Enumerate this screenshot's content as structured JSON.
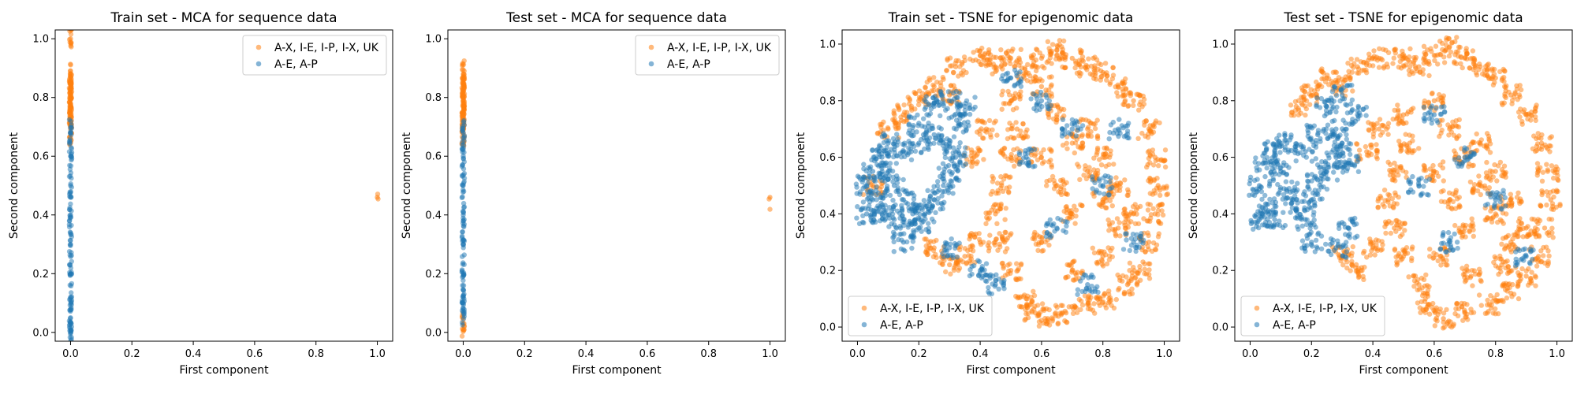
{
  "colors": {
    "orange": "#ff7f0e",
    "blue": "#1f77b4"
  },
  "chart_data": [
    {
      "type": "scatter",
      "title": "Train set - MCA for sequence data",
      "xlabel": "First component",
      "ylabel": "Second component",
      "xlim": [
        -0.05,
        1.05
      ],
      "ylim": [
        -0.03,
        1.03
      ],
      "xticks": [
        "0.0",
        "0.2",
        "0.4",
        "0.6",
        "0.8",
        "1.0"
      ],
      "yticks": [
        "0.0",
        "0.2",
        "0.4",
        "0.6",
        "0.8",
        "1.0"
      ],
      "legend": {
        "placement": "upper-right",
        "entries": [
          "A-X, I-E, I-P, I-X, UK",
          "A-E, A-P"
        ]
      },
      "series": [
        {
          "name": "A-X, I-E, I-P, I-X, UK",
          "color": "#ff7f0e",
          "points": [
            [
              0.0,
              1.0
            ],
            [
              0.0,
              0.88
            ],
            [
              0.0,
              0.85
            ],
            [
              0.0,
              0.82
            ],
            [
              0.0,
              0.8
            ],
            [
              0.0,
              0.78
            ],
            [
              0.0,
              0.75
            ],
            [
              0.0,
              0.72
            ],
            [
              0.0,
              0.7
            ],
            [
              0.0,
              0.68
            ],
            [
              1.0,
              0.46
            ]
          ]
        },
        {
          "name": "A-E, A-P",
          "color": "#1f77b4",
          "points": [
            [
              0.0,
              0.68
            ],
            [
              0.0,
              0.6
            ],
            [
              0.0,
              0.5
            ],
            [
              0.0,
              0.4
            ],
            [
              0.0,
              0.3
            ],
            [
              0.0,
              0.2
            ],
            [
              0.0,
              0.12
            ],
            [
              0.0,
              0.05
            ],
            [
              0.0,
              0.0
            ]
          ]
        }
      ]
    },
    {
      "type": "scatter",
      "title": "Test set - MCA for sequence data",
      "xlabel": "First component",
      "ylabel": "Second component",
      "xlim": [
        -0.05,
        1.05
      ],
      "ylim": [
        -0.03,
        1.03
      ],
      "xticks": [
        "0.0",
        "0.2",
        "0.4",
        "0.6",
        "0.8",
        "1.0"
      ],
      "yticks": [
        "0.0",
        "0.2",
        "0.4",
        "0.6",
        "0.8",
        "1.0"
      ],
      "legend": {
        "placement": "upper-right",
        "entries": [
          "A-X, I-E, I-P, I-X, UK",
          "A-E, A-P"
        ]
      },
      "series": [
        {
          "name": "A-X, I-E, I-P, I-X, UK",
          "color": "#ff7f0e",
          "points": [
            [
              0.0,
              0.88
            ],
            [
              0.0,
              0.85
            ],
            [
              0.0,
              0.82
            ],
            [
              0.0,
              0.8
            ],
            [
              0.0,
              0.78
            ],
            [
              0.0,
              0.75
            ],
            [
              0.0,
              0.72
            ],
            [
              0.0,
              0.7
            ],
            [
              0.0,
              0.68
            ],
            [
              0.0,
              0.03
            ],
            [
              1.0,
              0.46
            ]
          ]
        },
        {
          "name": "A-E, A-P",
          "color": "#1f77b4",
          "points": [
            [
              0.0,
              0.68
            ],
            [
              0.0,
              0.6
            ],
            [
              0.0,
              0.5
            ],
            [
              0.0,
              0.4
            ],
            [
              0.0,
              0.3
            ],
            [
              0.0,
              0.2
            ],
            [
              0.0,
              0.12
            ],
            [
              0.0,
              0.07
            ]
          ]
        }
      ]
    },
    {
      "type": "scatter",
      "title": "Train set - TSNE for epigenomic data",
      "xlabel": "First component",
      "ylabel": "Second component",
      "xlim": [
        -0.05,
        1.05
      ],
      "ylim": [
        -0.05,
        1.05
      ],
      "xticks": [
        "0.0",
        "0.2",
        "0.4",
        "0.6",
        "0.8",
        "1.0"
      ],
      "yticks": [
        "0.0",
        "0.2",
        "0.4",
        "0.6",
        "0.8",
        "1.0"
      ],
      "legend": {
        "placement": "lower-left",
        "entries": [
          "A-X, I-E, I-P, I-X, UK",
          "A-E, A-P"
        ]
      },
      "series": [
        {
          "name": "A-X, I-E, I-P, I-X, UK",
          "color": "#ff7f0e",
          "points": [
            [
              0.5,
              0.95
            ],
            [
              0.55,
              0.9
            ],
            [
              0.6,
              0.95
            ],
            [
              0.65,
              0.98
            ],
            [
              0.7,
              0.95
            ],
            [
              0.75,
              0.92
            ],
            [
              0.8,
              0.9
            ],
            [
              0.85,
              0.85
            ],
            [
              0.9,
              0.8
            ],
            [
              0.95,
              0.7
            ],
            [
              0.97,
              0.6
            ],
            [
              0.98,
              0.5
            ],
            [
              0.97,
              0.4
            ],
            [
              0.95,
              0.3
            ],
            [
              0.92,
              0.2
            ],
            [
              0.88,
              0.15
            ],
            [
              0.82,
              0.1
            ],
            [
              0.75,
              0.08
            ],
            [
              0.68,
              0.05
            ],
            [
              0.62,
              0.03
            ],
            [
              0.58,
              0.05
            ],
            [
              0.55,
              0.1
            ],
            [
              0.5,
              0.2
            ],
            [
              0.48,
              0.3
            ],
            [
              0.45,
              0.4
            ],
            [
              0.47,
              0.5
            ],
            [
              0.5,
              0.6
            ],
            [
              0.52,
              0.7
            ],
            [
              0.5,
              0.8
            ],
            [
              0.6,
              0.85
            ],
            [
              0.65,
              0.75
            ],
            [
              0.7,
              0.65
            ],
            [
              0.75,
              0.55
            ],
            [
              0.8,
              0.45
            ],
            [
              0.85,
              0.35
            ],
            [
              0.7,
              0.4
            ],
            [
              0.65,
              0.5
            ],
            [
              0.6,
              0.6
            ],
            [
              0.75,
              0.7
            ],
            [
              0.8,
              0.6
            ],
            [
              0.85,
              0.5
            ],
            [
              0.9,
              0.4
            ],
            [
              0.6,
              0.3
            ],
            [
              0.7,
              0.2
            ],
            [
              0.8,
              0.25
            ],
            [
              0.4,
              0.3
            ],
            [
              0.35,
              0.25
            ],
            [
              0.3,
              0.22
            ],
            [
              0.25,
              0.28
            ],
            [
              0.38,
              0.6
            ],
            [
              0.42,
              0.7
            ],
            [
              0.2,
              0.8
            ],
            [
              0.25,
              0.85
            ],
            [
              0.3,
              0.82
            ],
            [
              0.1,
              0.7
            ],
            [
              0.15,
              0.75
            ],
            [
              0.05,
              0.5
            ],
            [
              0.32,
              0.92
            ],
            [
              0.4,
              0.96
            ],
            [
              0.45,
              0.92
            ]
          ]
        },
        {
          "name": "A-E, A-P",
          "color": "#1f77b4",
          "points": [
            [
              0.03,
              0.5
            ],
            [
              0.05,
              0.55
            ],
            [
              0.08,
              0.6
            ],
            [
              0.1,
              0.55
            ],
            [
              0.12,
              0.5
            ],
            [
              0.15,
              0.45
            ],
            [
              0.18,
              0.4
            ],
            [
              0.2,
              0.35
            ],
            [
              0.22,
              0.4
            ],
            [
              0.25,
              0.45
            ],
            [
              0.28,
              0.5
            ],
            [
              0.3,
              0.55
            ],
            [
              0.32,
              0.6
            ],
            [
              0.3,
              0.65
            ],
            [
              0.25,
              0.68
            ],
            [
              0.2,
              0.65
            ],
            [
              0.15,
              0.62
            ],
            [
              0.1,
              0.65
            ],
            [
              0.05,
              0.45
            ],
            [
              0.08,
              0.4
            ],
            [
              0.12,
              0.38
            ],
            [
              0.03,
              0.4
            ],
            [
              0.2,
              0.72
            ],
            [
              0.25,
              0.78
            ],
            [
              0.3,
              0.8
            ],
            [
              0.35,
              0.78
            ],
            [
              0.33,
              0.72
            ],
            [
              0.15,
              0.3
            ],
            [
              0.3,
              0.28
            ],
            [
              0.4,
              0.2
            ],
            [
              0.45,
              0.15
            ],
            [
              0.6,
              0.8
            ],
            [
              0.7,
              0.7
            ],
            [
              0.8,
              0.5
            ],
            [
              0.55,
              0.6
            ],
            [
              0.9,
              0.3
            ],
            [
              0.65,
              0.35
            ],
            [
              0.75,
              0.15
            ],
            [
              0.85,
              0.7
            ],
            [
              0.5,
              0.88
            ]
          ]
        }
      ]
    },
    {
      "type": "scatter",
      "title": "Test set - TSNE for epigenomic data",
      "xlabel": "First component",
      "ylabel": "Second component",
      "xlim": [
        -0.05,
        1.05
      ],
      "ylim": [
        -0.05,
        1.05
      ],
      "xticks": [
        "0.0",
        "0.2",
        "0.4",
        "0.6",
        "0.8",
        "1.0"
      ],
      "yticks": [
        "0.0",
        "0.2",
        "0.4",
        "0.6",
        "0.8",
        "1.0"
      ],
      "legend": {
        "placement": "lower-left",
        "entries": [
          "A-X, I-E, I-P, I-X, UK",
          "A-E, A-P"
        ]
      },
      "series": [
        {
          "name": "A-X, I-E, I-P, I-X, UK",
          "color": "#ff7f0e",
          "points": [
            [
              0.5,
              0.95
            ],
            [
              0.55,
              0.92
            ],
            [
              0.6,
              0.96
            ],
            [
              0.65,
              0.99
            ],
            [
              0.7,
              0.95
            ],
            [
              0.75,
              0.92
            ],
            [
              0.8,
              0.88
            ],
            [
              0.85,
              0.82
            ],
            [
              0.9,
              0.75
            ],
            [
              0.95,
              0.65
            ],
            [
              0.97,
              0.55
            ],
            [
              0.98,
              0.45
            ],
            [
              0.96,
              0.35
            ],
            [
              0.94,
              0.25
            ],
            [
              0.9,
              0.18
            ],
            [
              0.85,
              0.12
            ],
            [
              0.78,
              0.08
            ],
            [
              0.7,
              0.05
            ],
            [
              0.63,
              0.03
            ],
            [
              0.58,
              0.08
            ],
            [
              0.55,
              0.15
            ],
            [
              0.5,
              0.25
            ],
            [
              0.47,
              0.35
            ],
            [
              0.45,
              0.45
            ],
            [
              0.48,
              0.55
            ],
            [
              0.52,
              0.65
            ],
            [
              0.5,
              0.75
            ],
            [
              0.6,
              0.8
            ],
            [
              0.65,
              0.7
            ],
            [
              0.7,
              0.6
            ],
            [
              0.75,
              0.5
            ],
            [
              0.8,
              0.4
            ],
            [
              0.85,
              0.3
            ],
            [
              0.7,
              0.35
            ],
            [
              0.65,
              0.45
            ],
            [
              0.6,
              0.55
            ],
            [
              0.75,
              0.65
            ],
            [
              0.8,
              0.55
            ],
            [
              0.85,
              0.45
            ],
            [
              0.9,
              0.35
            ],
            [
              0.62,
              0.25
            ],
            [
              0.72,
              0.18
            ],
            [
              0.82,
              0.22
            ],
            [
              0.4,
              0.28
            ],
            [
              0.35,
              0.2
            ],
            [
              0.3,
              0.25
            ],
            [
              0.38,
              0.62
            ],
            [
              0.42,
              0.7
            ],
            [
              0.2,
              0.82
            ],
            [
              0.25,
              0.88
            ],
            [
              0.3,
              0.85
            ],
            [
              0.15,
              0.78
            ],
            [
              0.35,
              0.92
            ],
            [
              0.42,
              0.95
            ]
          ]
        },
        {
          "name": "A-E, A-P",
          "color": "#1f77b4",
          "points": [
            [
              0.03,
              0.5
            ],
            [
              0.05,
              0.58
            ],
            [
              0.08,
              0.62
            ],
            [
              0.1,
              0.55
            ],
            [
              0.12,
              0.48
            ],
            [
              0.15,
              0.42
            ],
            [
              0.18,
              0.38
            ],
            [
              0.2,
              0.45
            ],
            [
              0.22,
              0.52
            ],
            [
              0.25,
              0.55
            ],
            [
              0.28,
              0.6
            ],
            [
              0.3,
              0.65
            ],
            [
              0.32,
              0.58
            ],
            [
              0.28,
              0.7
            ],
            [
              0.22,
              0.68
            ],
            [
              0.18,
              0.62
            ],
            [
              0.12,
              0.65
            ],
            [
              0.05,
              0.42
            ],
            [
              0.08,
              0.38
            ],
            [
              0.03,
              0.38
            ],
            [
              0.25,
              0.78
            ],
            [
              0.3,
              0.82
            ],
            [
              0.35,
              0.75
            ],
            [
              0.2,
              0.3
            ],
            [
              0.28,
              0.28
            ],
            [
              0.32,
              0.35
            ],
            [
              0.6,
              0.75
            ],
            [
              0.7,
              0.6
            ],
            [
              0.8,
              0.45
            ],
            [
              0.9,
              0.25
            ],
            [
              0.55,
              0.5
            ],
            [
              0.65,
              0.3
            ]
          ]
        }
      ]
    }
  ]
}
